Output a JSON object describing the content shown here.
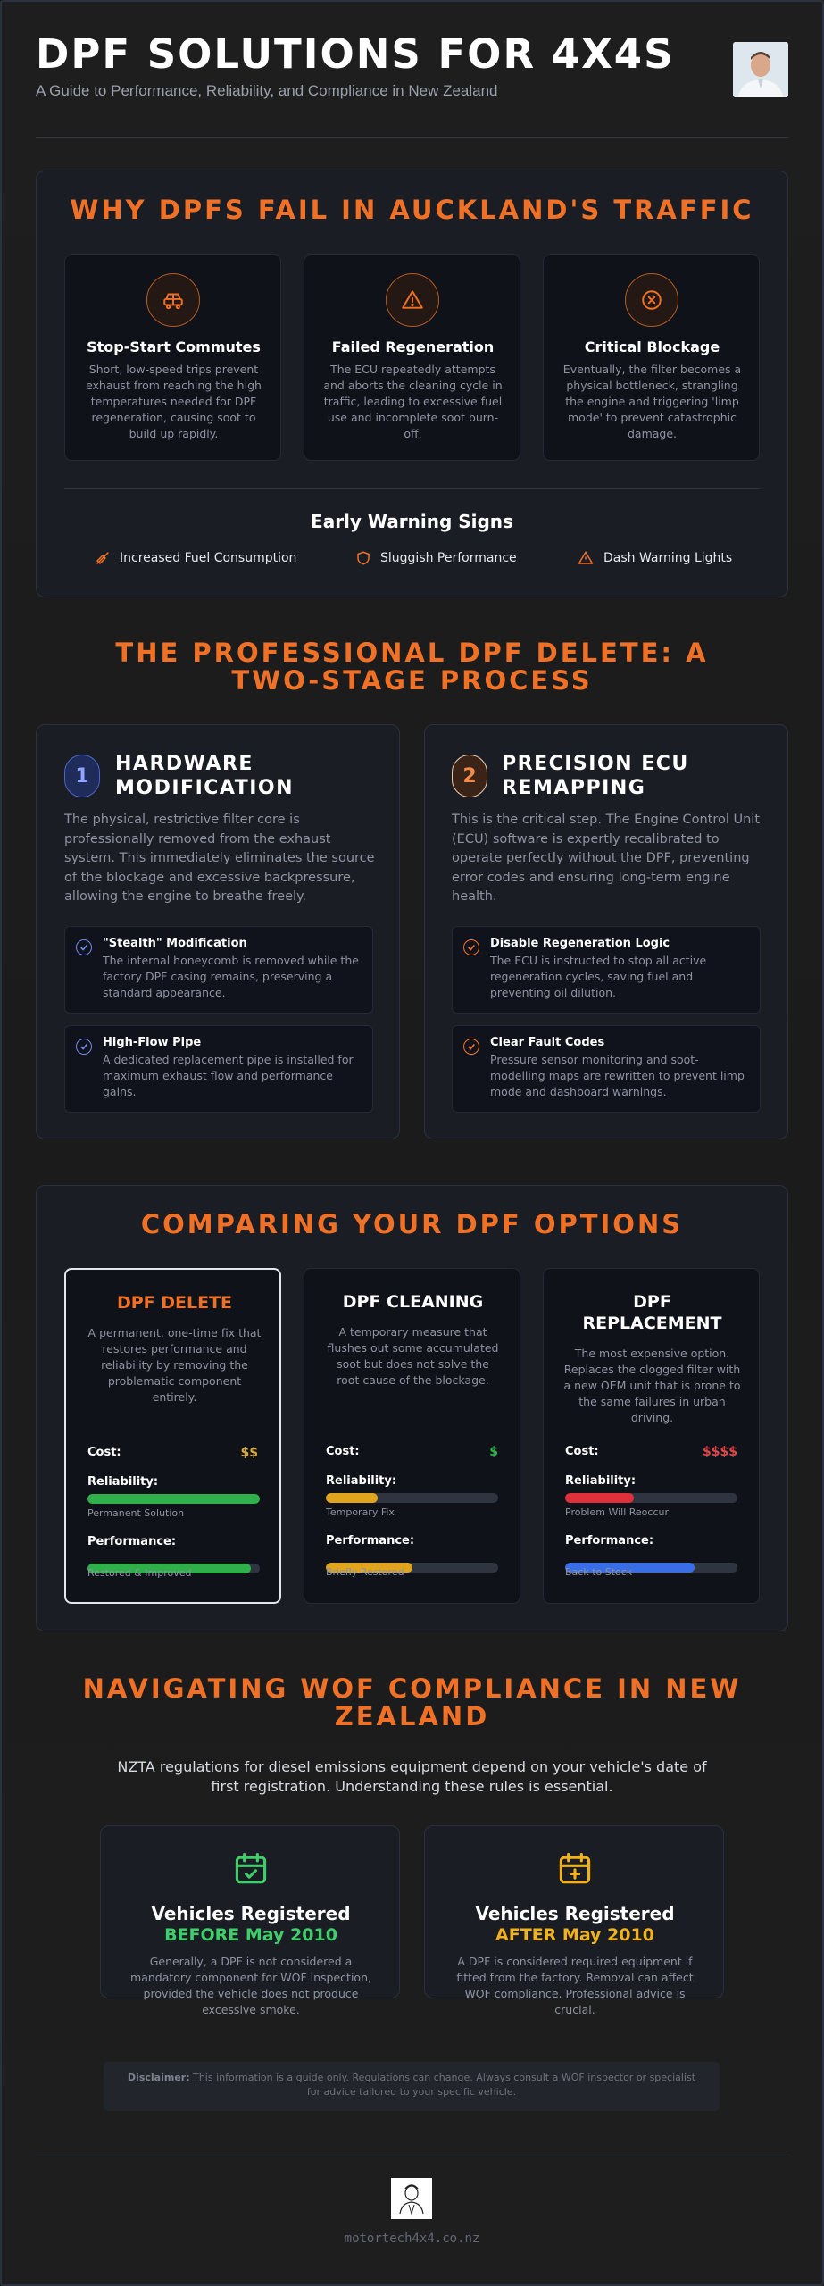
{
  "header": {
    "title": "DPF SOLUTIONS FOR 4X4S",
    "subtitle": "A Guide to Performance, Reliability, and Compliance in New Zealand"
  },
  "why_fail": {
    "heading": "WHY DPFS FAIL IN AUCKLAND'S TRAFFIC",
    "cards": [
      {
        "icon": "car-icon",
        "title": "Stop-Start Commutes",
        "text": "Short, low-speed trips prevent exhaust from reaching the high temperatures needed for DPF regeneration, causing soot to build up rapidly."
      },
      {
        "icon": "warning-triangle-icon",
        "title": "Failed Regeneration",
        "text": "The ECU repeatedly attempts and aborts the cleaning cycle in traffic, leading to excessive fuel use and incomplete soot burn-off."
      },
      {
        "icon": "x-circle-icon",
        "title": "Critical Blockage",
        "text": "Eventually, the filter becomes a physical bottleneck, strangling the engine and triggering 'limp mode' to prevent catastrophic damage."
      }
    ],
    "warning_heading": "Early Warning Signs",
    "warnings": [
      {
        "icon": "fuel-icon",
        "label": "Increased Fuel Consumption"
      },
      {
        "icon": "shield-icon",
        "label": "Sluggish Performance"
      },
      {
        "icon": "warning-icon",
        "label": "Dash Warning Lights"
      }
    ]
  },
  "process": {
    "heading": "THE PROFESSIONAL DPF DELETE: A TWO-STAGE PROCESS",
    "stages": [
      {
        "number": "1",
        "title": "HARDWARE MODIFICATION",
        "text": "The physical, restrictive filter core is professionally removed from the exhaust system. This immediately eliminates the source of the blockage and excessive backpressure, allowing the engine to breathe freely.",
        "accent": "#5b7bea",
        "items": [
          {
            "title": "\"Stealth\" Modification",
            "text": "The internal honeycomb is removed while the factory DPF casing remains, preserving a standard appearance."
          },
          {
            "title": "High-Flow Pipe",
            "text": "A dedicated replacement pipe is installed for maximum exhaust flow and performance gains."
          }
        ]
      },
      {
        "number": "2",
        "title": "PRECISION ECU REMAPPING",
        "text": "This is the critical step. The Engine Control Unit (ECU) software is expertly recalibrated to operate perfectly without the DPF, preventing error codes and ensuring long-term engine health.",
        "accent": "#f07126",
        "items": [
          {
            "title": "Disable Regeneration Logic",
            "text": "The ECU is instructed to stop all active regeneration cycles, saving fuel and preventing oil dilution."
          },
          {
            "title": "Clear Fault Codes",
            "text": "Pressure sensor monitoring and soot-modelling maps are rewritten to prevent limp mode and dashboard warnings."
          }
        ]
      }
    ]
  },
  "compare": {
    "heading": "COMPARING YOUR DPF OPTIONS",
    "cost_label": "Cost:",
    "reliability_label": "Reliability:",
    "performance_label": "Performance:",
    "options": [
      {
        "title": "DPF DELETE",
        "text": "A permanent, one-time fix that restores performance and reliability by removing the problematic component entirely.",
        "cost": "$$",
        "cost_color": "#d6a93a",
        "reliability": 1.0,
        "reliability_color": "#2fb04a",
        "reliability_note": "Permanent Solution",
        "performance": 0.95,
        "performance_color": "#2fb04a",
        "performance_note": "Restored & Improved"
      },
      {
        "title": "DPF CLEANING",
        "text": "A temporary measure that flushes out some accumulated soot but does not solve the root cause of the blockage.",
        "cost": "$",
        "cost_color": "#2fb04a",
        "reliability": 0.3,
        "reliability_color": "#e0a51d",
        "reliability_note": "Temporary Fix",
        "performance": 0.5,
        "performance_color": "#e0a51d",
        "performance_note": "Briefly Restored"
      },
      {
        "title": "DPF REPLACEMENT",
        "text": "The most expensive option. Replaces the clogged filter with a new OEM unit that is prone to the same failures in urban driving.",
        "cost": "$$$$",
        "cost_color": "#e04848",
        "reliability": 0.4,
        "reliability_color": "#e0303a",
        "reliability_note": "Problem Will Reoccur",
        "performance": 0.75,
        "performance_color": "#3a6ee8",
        "performance_note": "Back to Stock"
      }
    ]
  },
  "wof": {
    "heading": "NAVIGATING WOF COMPLIANCE IN NEW ZEALAND",
    "intro": "NZTA regulations for diesel emissions equipment depend on your vehicle's date of first registration. Understanding these rules is essential.",
    "cards": [
      {
        "title": "Vehicles Registered",
        "subtitle": "BEFORE May 2010",
        "color": "#3fcf6a",
        "text": "Generally, a DPF is not considered a mandatory component for WOF inspection, provided the vehicle does not produce excessive smoke."
      },
      {
        "title": "Vehicles Registered",
        "subtitle": "AFTER May 2010",
        "color": "#f2b21b",
        "text": "A DPF is considered required equipment if fitted from the factory. Removal can affect WOF compliance. Professional advice is crucial."
      }
    ],
    "disclaimer_label": "Disclaimer:",
    "disclaimer_text": "This information is a guide only. Regulations can change. Always consult a WOF inspector or specialist for advice tailored to your specific vehicle."
  },
  "footer": {
    "website": "motortech4x4.co.nz"
  }
}
